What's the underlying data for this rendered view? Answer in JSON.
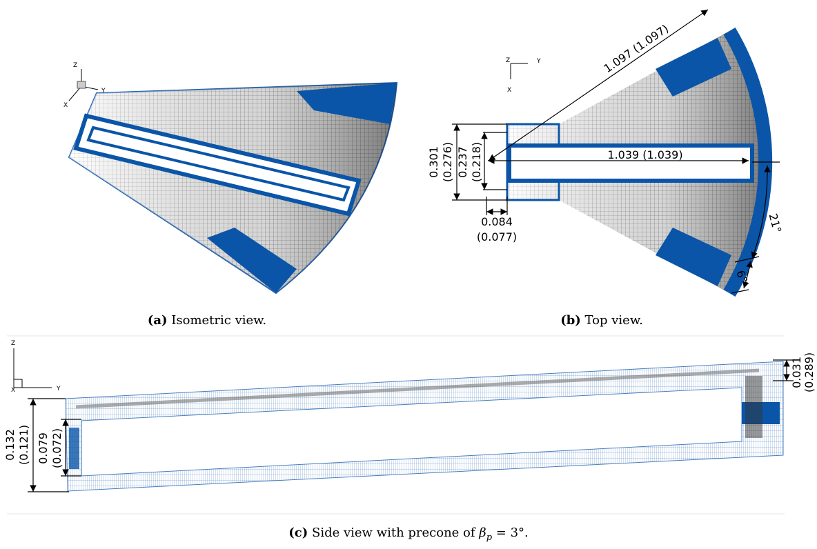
{
  "panels": [
    {
      "label": "(a)",
      "caption": "Isometric view.",
      "axes": [
        "Z",
        "Y",
        "X"
      ]
    },
    {
      "label": "(b)",
      "caption": "Top view.",
      "axes": [
        "Z",
        "Y",
        "X"
      ],
      "dimensions": {
        "radius": "1.097 (1.097)",
        "chord": [
          "0.301",
          "(0.276)"
        ],
        "inner_chord": [
          "0.237",
          "(0.218)"
        ],
        "span": "1.039 (1.039)",
        "offset": [
          "0.084",
          "(0.077)"
        ],
        "sector_angle": "21°",
        "end_angle": "6°"
      }
    },
    {
      "label": "(c)",
      "caption": "Side view with precone of",
      "symbol": "β",
      "subscript": "p",
      "equation": "= 3°.",
      "axes": [
        "Z",
        "Y",
        "X"
      ],
      "dimensions": {
        "tip": [
          "0.031",
          "(0.289)"
        ],
        "outer": [
          "0.132",
          "(0.121)"
        ],
        "inner": [
          "0.079",
          "(0.072)"
        ]
      }
    }
  ]
}
